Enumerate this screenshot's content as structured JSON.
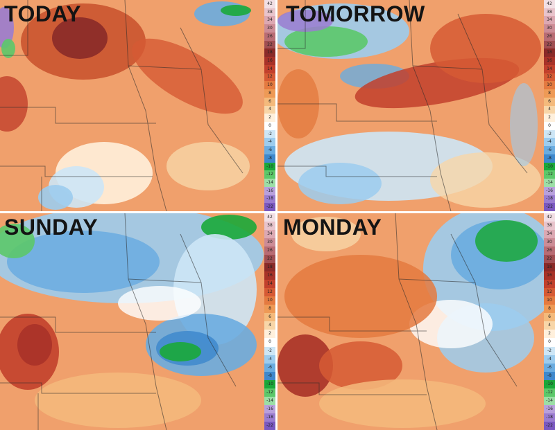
{
  "panels": [
    {
      "id": "today",
      "title": "TODAY"
    },
    {
      "id": "tomorrow",
      "title": "TOMORROW"
    },
    {
      "id": "sunday",
      "title": "SUNDAY"
    },
    {
      "id": "monday",
      "title": "MONDAY"
    }
  ],
  "legend": {
    "labels": [
      "42",
      "38",
      "34",
      "30",
      "26",
      "22",
      "18",
      "16",
      "14",
      "12",
      "10",
      "8",
      "6",
      "4",
      "2",
      "0",
      "-2",
      "-4",
      "-6",
      "-8",
      "-10",
      "-12",
      "-14",
      "-16",
      "-18",
      "-22"
    ],
    "colors": [
      "#f2dfe4",
      "#e8c4cc",
      "#dca8b2",
      "#cc8c96",
      "#b86c74",
      "#a04e52",
      "#8a2a28",
      "#a83228",
      "#c2402c",
      "#d65a34",
      "#e47a40",
      "#ee9a56",
      "#f4ba7c",
      "#f8d6a8",
      "#fff0dc",
      "#ffffff",
      "#cde6f6",
      "#9cccee",
      "#6aace0",
      "#3e88cc",
      "#1aa83a",
      "#5cc86a",
      "#9cdea6",
      "#b8a0dc",
      "#9a7cd0",
      "#7a58c0"
    ]
  }
}
